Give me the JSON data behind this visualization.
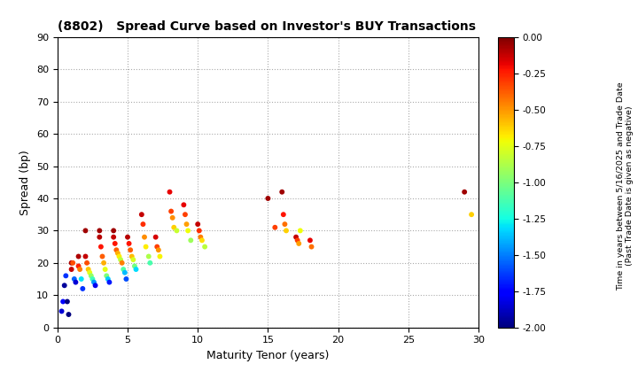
{
  "title": "(8802)   Spread Curve based on Investor's BUY Transactions",
  "xlabel": "Maturity Tenor (years)",
  "ylabel": "Spread (bp)",
  "colorbar_label": "Time in years between 5/16/2025 and Trade Date\n(Past Trade Date is given as negative)",
  "xlim": [
    0,
    30
  ],
  "ylim": [
    0,
    90
  ],
  "xticks": [
    0,
    5,
    10,
    15,
    20,
    25,
    30
  ],
  "yticks": [
    0,
    10,
    20,
    30,
    40,
    50,
    60,
    70,
    80,
    90
  ],
  "cmap": "jet",
  "vmin": -2.0,
  "vmax": 0.0,
  "colorbar_ticks": [
    0.0,
    -0.25,
    -0.5,
    -0.75,
    -1.0,
    -1.25,
    -1.5,
    -1.75,
    -2.0
  ],
  "points": [
    [
      0.3,
      5,
      -1.85
    ],
    [
      0.4,
      8,
      -1.75
    ],
    [
      0.5,
      13,
      -1.95
    ],
    [
      0.6,
      16,
      -1.65
    ],
    [
      0.7,
      8,
      -2.0
    ],
    [
      0.8,
      4,
      -2.0
    ],
    [
      1.0,
      20,
      -0.08
    ],
    [
      1.0,
      18,
      -0.12
    ],
    [
      1.1,
      20,
      -0.35
    ],
    [
      1.2,
      15,
      -1.55
    ],
    [
      1.3,
      14,
      -1.85
    ],
    [
      1.5,
      22,
      -0.08
    ],
    [
      1.5,
      19,
      -0.25
    ],
    [
      1.6,
      18,
      -0.45
    ],
    [
      1.7,
      15,
      -1.3
    ],
    [
      1.8,
      12,
      -1.65
    ],
    [
      2.0,
      30,
      -0.06
    ],
    [
      2.0,
      22,
      -0.12
    ],
    [
      2.1,
      20,
      -0.35
    ],
    [
      2.2,
      18,
      -0.6
    ],
    [
      2.3,
      17,
      -0.75
    ],
    [
      2.4,
      16,
      -0.95
    ],
    [
      2.5,
      15,
      -1.15
    ],
    [
      2.6,
      14,
      -1.45
    ],
    [
      2.7,
      13,
      -1.8
    ],
    [
      3.0,
      30,
      -0.06
    ],
    [
      3.0,
      28,
      -0.1
    ],
    [
      3.1,
      25,
      -0.22
    ],
    [
      3.2,
      22,
      -0.38
    ],
    [
      3.3,
      20,
      -0.55
    ],
    [
      3.4,
      18,
      -0.75
    ],
    [
      3.5,
      16,
      -1.0
    ],
    [
      3.6,
      15,
      -1.35
    ],
    [
      3.7,
      14,
      -1.7
    ],
    [
      4.0,
      30,
      -0.06
    ],
    [
      4.0,
      28,
      -0.12
    ],
    [
      4.1,
      26,
      -0.22
    ],
    [
      4.2,
      24,
      -0.38
    ],
    [
      4.3,
      23,
      -0.55
    ],
    [
      4.4,
      22,
      -0.68
    ],
    [
      4.5,
      21,
      -0.85
    ],
    [
      4.6,
      20,
      -0.45
    ],
    [
      4.7,
      18,
      -1.1
    ],
    [
      4.8,
      17,
      -1.38
    ],
    [
      4.9,
      15,
      -1.6
    ],
    [
      5.0,
      28,
      -0.1
    ],
    [
      5.1,
      26,
      -0.22
    ],
    [
      5.2,
      24,
      -0.38
    ],
    [
      5.3,
      22,
      -0.58
    ],
    [
      5.4,
      21,
      -0.78
    ],
    [
      5.5,
      19,
      -1.02
    ],
    [
      5.6,
      18,
      -1.32
    ],
    [
      6.0,
      35,
      -0.12
    ],
    [
      6.1,
      32,
      -0.28
    ],
    [
      6.2,
      28,
      -0.48
    ],
    [
      6.3,
      25,
      -0.68
    ],
    [
      6.5,
      22,
      -0.88
    ],
    [
      6.6,
      20,
      -1.12
    ],
    [
      7.0,
      28,
      -0.15
    ],
    [
      7.1,
      25,
      -0.32
    ],
    [
      7.2,
      24,
      -0.5
    ],
    [
      7.3,
      22,
      -0.7
    ],
    [
      8.0,
      42,
      -0.18
    ],
    [
      8.1,
      36,
      -0.32
    ],
    [
      8.2,
      34,
      -0.48
    ],
    [
      8.3,
      31,
      -0.62
    ],
    [
      8.5,
      30,
      -0.82
    ],
    [
      9.0,
      38,
      -0.18
    ],
    [
      9.1,
      35,
      -0.32
    ],
    [
      9.2,
      32,
      -0.52
    ],
    [
      9.3,
      30,
      -0.72
    ],
    [
      9.5,
      27,
      -0.92
    ],
    [
      10.0,
      32,
      -0.12
    ],
    [
      10.1,
      30,
      -0.28
    ],
    [
      10.2,
      28,
      -0.45
    ],
    [
      10.3,
      27,
      -0.65
    ],
    [
      10.5,
      25,
      -0.85
    ],
    [
      15.0,
      40,
      -0.06
    ],
    [
      15.5,
      31,
      -0.32
    ],
    [
      16.0,
      42,
      -0.06
    ],
    [
      16.1,
      35,
      -0.22
    ],
    [
      16.2,
      32,
      -0.42
    ],
    [
      16.3,
      30,
      -0.62
    ],
    [
      17.0,
      28,
      -0.12
    ],
    [
      17.1,
      27,
      -0.32
    ],
    [
      17.2,
      26,
      -0.52
    ],
    [
      17.3,
      30,
      -0.72
    ],
    [
      18.0,
      27,
      -0.18
    ],
    [
      18.1,
      25,
      -0.42
    ],
    [
      29.0,
      42,
      -0.06
    ],
    [
      29.5,
      35,
      -0.62
    ]
  ]
}
